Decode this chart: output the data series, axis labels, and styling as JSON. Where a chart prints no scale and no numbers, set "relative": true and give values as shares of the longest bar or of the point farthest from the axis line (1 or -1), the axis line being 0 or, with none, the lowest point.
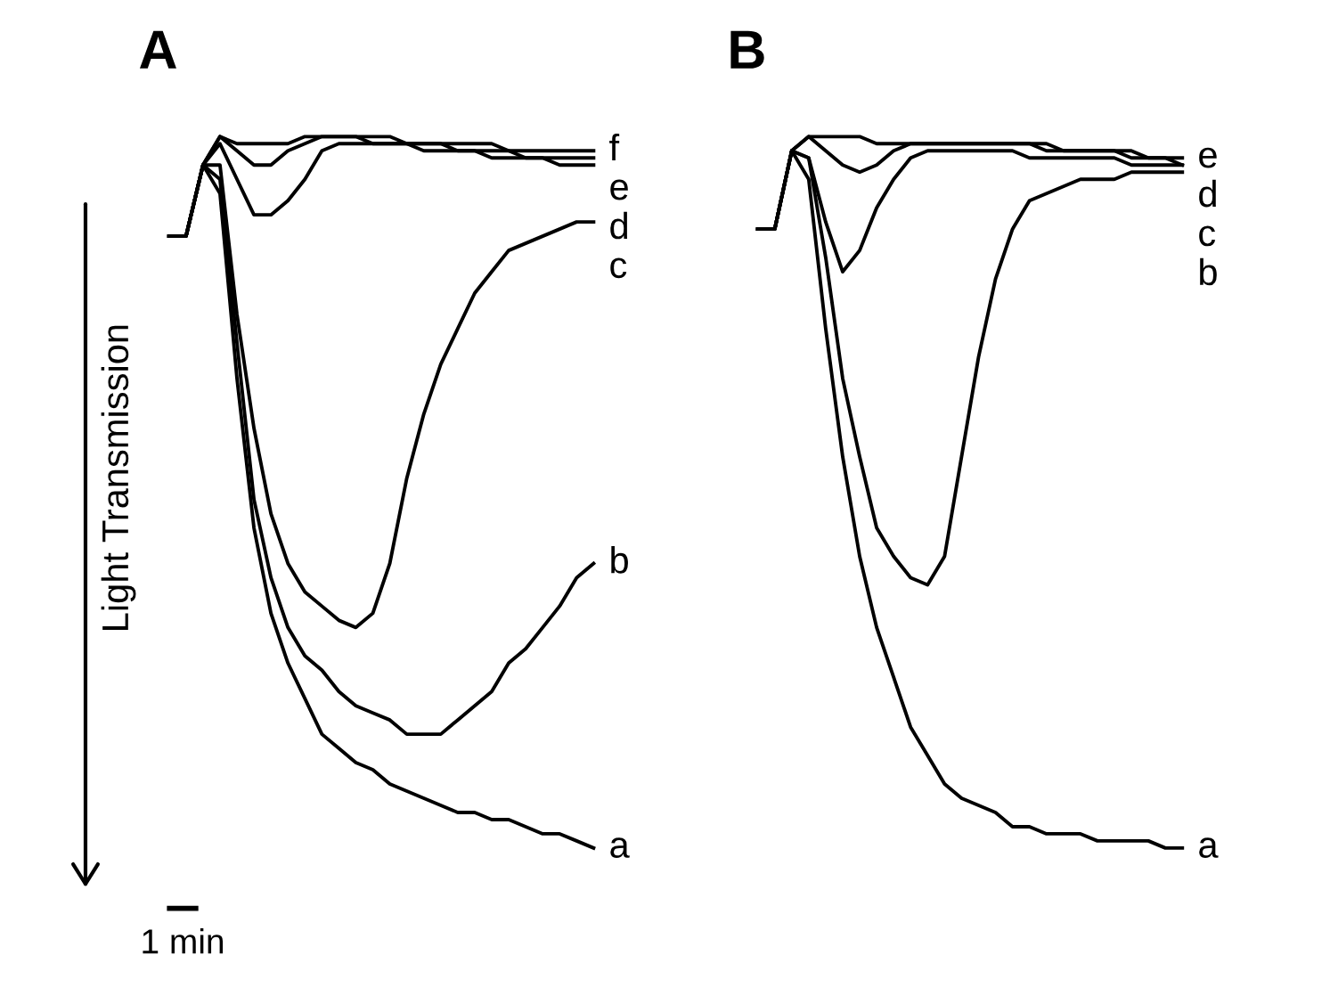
{
  "chart_data": [
    {
      "type": "line",
      "title": "A",
      "ylabel": "Light Transmission",
      "relative": true,
      "annotations": [
        "1 min"
      ],
      "categories": [
        null,
        null,
        null,
        null,
        null,
        null,
        null,
        null,
        null,
        null,
        null,
        null,
        null,
        null,
        null,
        null,
        null,
        null,
        null,
        null,
        null,
        null,
        null,
        null,
        null,
        null
      ],
      "series": [
        {
          "name": "f",
          "color": "#000000",
          "values": [
            0.86,
            0.86,
            0.96,
            1.0,
            0.99,
            0.99,
            0.99,
            0.99,
            1.0,
            1.0,
            1.0,
            1.0,
            1.0,
            1.0,
            0.99,
            0.99,
            0.99,
            0.99,
            0.99,
            0.99,
            0.98,
            0.98,
            0.98,
            0.98,
            0.98,
            0.98
          ]
        },
        {
          "name": "e",
          "color": "#000000",
          "values": [
            0.86,
            0.86,
            0.96,
            1.0,
            0.98,
            0.96,
            0.96,
            0.98,
            0.99,
            1.0,
            1.0,
            1.0,
            0.99,
            0.99,
            0.99,
            0.99,
            0.99,
            0.98,
            0.98,
            0.98,
            0.98,
            0.97,
            0.97,
            0.97,
            0.97,
            0.97
          ]
        },
        {
          "name": "d",
          "color": "#000000",
          "values": [
            0.86,
            0.86,
            0.96,
            0.99,
            0.94,
            0.89,
            0.89,
            0.91,
            0.94,
            0.98,
            0.99,
            0.99,
            0.99,
            0.99,
            0.99,
            0.98,
            0.98,
            0.98,
            0.98,
            0.97,
            0.97,
            0.97,
            0.97,
            0.96,
            0.96,
            0.96
          ]
        },
        {
          "name": "c",
          "color": "#000000",
          "values": [
            0.86,
            0.86,
            0.96,
            0.96,
            0.75,
            0.59,
            0.47,
            0.4,
            0.36,
            0.34,
            0.32,
            0.31,
            0.33,
            0.4,
            0.52,
            0.61,
            0.68,
            0.73,
            0.78,
            0.81,
            0.84,
            0.85,
            0.86,
            0.87,
            0.88,
            0.88
          ]
        },
        {
          "name": "b",
          "color": "#000000",
          "values": [
            0.86,
            0.86,
            0.96,
            0.94,
            0.71,
            0.49,
            0.38,
            0.31,
            0.27,
            0.25,
            0.22,
            0.2,
            0.19,
            0.18,
            0.16,
            0.16,
            0.16,
            0.18,
            0.2,
            0.22,
            0.26,
            0.28,
            0.31,
            0.34,
            0.38,
            0.4
          ]
        },
        {
          "name": "a",
          "color": "#000000",
          "values": [
            0.86,
            0.86,
            0.96,
            0.92,
            0.66,
            0.45,
            0.33,
            0.26,
            0.21,
            0.16,
            0.14,
            0.12,
            0.11,
            0.09,
            0.08,
            0.07,
            0.06,
            0.05,
            0.05,
            0.04,
            0.04,
            0.03,
            0.02,
            0.02,
            0.01,
            0.0
          ]
        }
      ]
    },
    {
      "type": "line",
      "title": "B",
      "relative": true,
      "categories": [
        null,
        null,
        null,
        null,
        null,
        null,
        null,
        null,
        null,
        null,
        null,
        null,
        null,
        null,
        null,
        null,
        null,
        null,
        null,
        null,
        null,
        null,
        null,
        null,
        null,
        null
      ],
      "series": [
        {
          "name": "e",
          "color": "#000000",
          "values": [
            0.87,
            0.87,
            0.98,
            1.0,
            1.0,
            1.0,
            1.0,
            0.99,
            0.99,
            0.99,
            0.99,
            0.99,
            0.99,
            0.99,
            0.99,
            0.99,
            0.99,
            0.99,
            0.98,
            0.98,
            0.98,
            0.98,
            0.98,
            0.97,
            0.97,
            0.97
          ]
        },
        {
          "name": "d",
          "color": "#000000",
          "values": [
            0.87,
            0.87,
            0.98,
            1.0,
            0.98,
            0.96,
            0.95,
            0.96,
            0.98,
            0.99,
            0.99,
            0.99,
            0.99,
            0.99,
            0.99,
            0.99,
            0.99,
            0.98,
            0.98,
            0.98,
            0.98,
            0.98,
            0.97,
            0.97,
            0.97,
            0.96
          ]
        },
        {
          "name": "c",
          "color": "#000000",
          "values": [
            0.87,
            0.87,
            0.98,
            0.97,
            0.88,
            0.81,
            0.84,
            0.9,
            0.94,
            0.97,
            0.98,
            0.98,
            0.98,
            0.98,
            0.98,
            0.98,
            0.97,
            0.97,
            0.97,
            0.97,
            0.97,
            0.97,
            0.96,
            0.96,
            0.96,
            0.96
          ]
        },
        {
          "name": "b",
          "color": "#000000",
          "values": [
            0.87,
            0.87,
            0.98,
            0.97,
            0.83,
            0.66,
            0.55,
            0.45,
            0.41,
            0.38,
            0.37,
            0.41,
            0.55,
            0.69,
            0.8,
            0.87,
            0.91,
            0.92,
            0.93,
            0.94,
            0.94,
            0.94,
            0.95,
            0.95,
            0.95,
            0.95
          ]
        },
        {
          "name": "a",
          "color": "#000000",
          "values": [
            0.87,
            0.87,
            0.98,
            0.94,
            0.73,
            0.55,
            0.41,
            0.31,
            0.24,
            0.17,
            0.13,
            0.09,
            0.07,
            0.06,
            0.05,
            0.03,
            0.03,
            0.02,
            0.02,
            0.02,
            0.01,
            0.01,
            0.01,
            0.01,
            0.0,
            0.0
          ]
        }
      ]
    }
  ]
}
